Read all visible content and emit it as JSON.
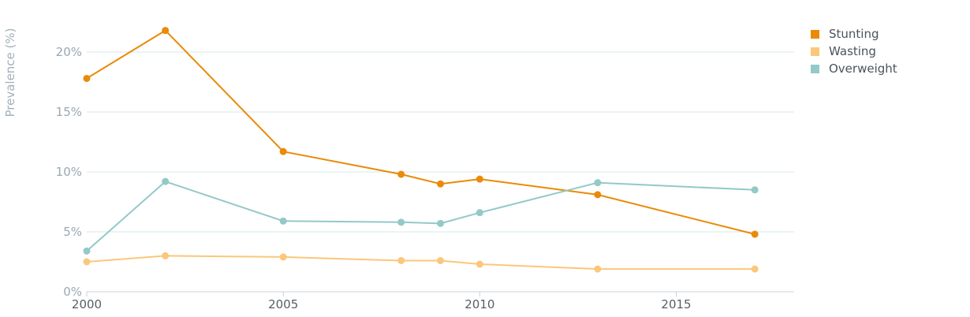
{
  "chart_data": {
    "type": "line",
    "ylabel": "Prevalence (%)",
    "xlabel": "",
    "xlim": [
      2000,
      2018
    ],
    "ylim": [
      0,
      22.5
    ],
    "x_ticks": [
      {
        "value": 2000,
        "label": "2000"
      },
      {
        "value": 2005,
        "label": "2005"
      },
      {
        "value": 2010,
        "label": "2010"
      },
      {
        "value": 2015,
        "label": "2015"
      }
    ],
    "y_ticks": [
      {
        "value": 0,
        "label": "0%"
      },
      {
        "value": 5,
        "label": "5%"
      },
      {
        "value": 10,
        "label": "10%"
      },
      {
        "value": 15,
        "label": "15%"
      },
      {
        "value": 20,
        "label": "20%"
      }
    ],
    "grid": "horizontal",
    "legend_position": "top-right",
    "series": [
      {
        "name": "Stunting",
        "color": "#ea8a07",
        "points": [
          {
            "x": 2000,
            "y": 17.8
          },
          {
            "x": 2002,
            "y": 21.8
          },
          {
            "x": 2005,
            "y": 11.7
          },
          {
            "x": 2008,
            "y": 9.8
          },
          {
            "x": 2009,
            "y": 9.0
          },
          {
            "x": 2010,
            "y": 9.4
          },
          {
            "x": 2013,
            "y": 8.1
          },
          {
            "x": 2017,
            "y": 4.8
          }
        ]
      },
      {
        "name": "Wasting",
        "color": "#fbc77a",
        "points": [
          {
            "x": 2000,
            "y": 2.5
          },
          {
            "x": 2002,
            "y": 3.0
          },
          {
            "x": 2005,
            "y": 2.9
          },
          {
            "x": 2008,
            "y": 2.6
          },
          {
            "x": 2009,
            "y": 2.6
          },
          {
            "x": 2010,
            "y": 2.3
          },
          {
            "x": 2013,
            "y": 1.9
          },
          {
            "x": 2017,
            "y": 1.9
          }
        ]
      },
      {
        "name": "Overweight",
        "color": "#93c9c8",
        "points": [
          {
            "x": 2000,
            "y": 3.4
          },
          {
            "x": 2002,
            "y": 9.2
          },
          {
            "x": 2005,
            "y": 5.9
          },
          {
            "x": 2008,
            "y": 5.8
          },
          {
            "x": 2009,
            "y": 5.7
          },
          {
            "x": 2010,
            "y": 6.6
          },
          {
            "x": 2013,
            "y": 9.1
          },
          {
            "x": 2017,
            "y": 8.5
          }
        ]
      }
    ]
  }
}
